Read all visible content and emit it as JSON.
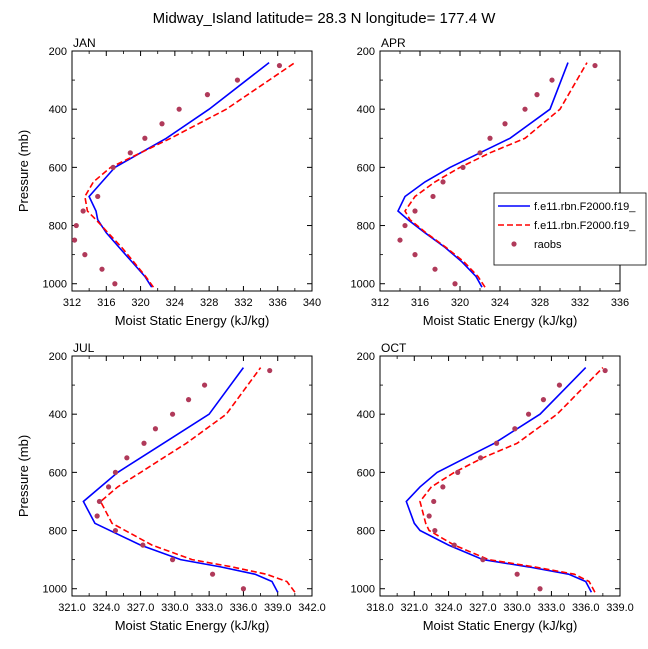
{
  "figure": {
    "title": "Midway_Island  latitude= 28.3 N longitude= 177.4 W"
  },
  "legend": {
    "placement": "right of APR panel",
    "entries": [
      {
        "label": "f.e11.rbn.F2000.f19_",
        "style": "solid",
        "color": "#0000ff"
      },
      {
        "label": "f.e11.rbn.F2000.f19_",
        "style": "dashed",
        "color": "#ff0000"
      },
      {
        "label": "raobs",
        "style": "marker",
        "color": "#b03a5a"
      }
    ]
  },
  "chart_data": [
    {
      "type": "line",
      "panel_label": "JAN",
      "xlabel": "Moist Static Energy (kJ/kg)",
      "ylabel": "Pressure (mb)",
      "xlim": [
        312,
        340
      ],
      "ylim": [
        1025,
        200
      ],
      "xticks": [
        312,
        316,
        320,
        324,
        328,
        332,
        336,
        340
      ],
      "xtick_labels": [
        "312",
        "316",
        "320",
        "324",
        "328",
        "332",
        "336",
        "340"
      ],
      "yticks": [
        200,
        400,
        600,
        800,
        1000
      ],
      "ytick_labels": [
        "200",
        "400",
        "600",
        "800",
        "1000"
      ],
      "series": [
        {
          "name": "f.e11.rbn.F2000.f19_",
          "style": "solid",
          "color": "#0000ff",
          "x": [
            321.3,
            320.5,
            319.0,
            317.5,
            316.0,
            315.0,
            314.8,
            314.0,
            315.5,
            317.0,
            320.0,
            323.0,
            328.0,
            335.0
          ],
          "y": [
            1012,
            975,
            925,
            875,
            825,
            780,
            750,
            700,
            650,
            600,
            550,
            500,
            400,
            240
          ]
        },
        {
          "name": "f.e11.rbn.F2000.f19_",
          "style": "dashed",
          "color": "#ff0000",
          "x": [
            321.5,
            320.6,
            319.2,
            317.8,
            316.2,
            314.8,
            313.8,
            313.5,
            314.5,
            316.5,
            320.0,
            323.5,
            330.0,
            338.0
          ],
          "y": [
            1012,
            975,
            925,
            875,
            825,
            780,
            750,
            700,
            650,
            600,
            550,
            500,
            400,
            240
          ]
        },
        {
          "name": "raobs",
          "style": "marker",
          "color": "#b03a5a",
          "x": [
            317.0,
            315.5,
            313.5,
            312.3,
            312.5,
            313.3,
            315.0,
            316.8,
            318.8,
            320.5,
            322.5,
            324.5,
            327.8,
            331.3,
            336.2
          ],
          "y": [
            1000,
            950,
            900,
            850,
            800,
            750,
            700,
            600,
            550,
            500,
            450,
            400,
            350,
            300,
            250
          ]
        }
      ]
    },
    {
      "type": "line",
      "panel_label": "APR",
      "xlabel": "Moist Static Energy (kJ/kg)",
      "ylabel": "",
      "xlim": [
        312,
        336
      ],
      "ylim": [
        1025,
        200
      ],
      "xticks": [
        312,
        316,
        320,
        324,
        328,
        332,
        336
      ],
      "xtick_labels": [
        "312",
        "316",
        "320",
        "324",
        "328",
        "332",
        "336"
      ],
      "yticks": [
        200,
        400,
        600,
        800,
        1000
      ],
      "ytick_labels": [
        "200",
        "400",
        "600",
        "800",
        "1000"
      ],
      "series": [
        {
          "name": "f.e11.rbn.F2000.f19_",
          "style": "solid",
          "color": "#0000ff",
          "x": [
            322.2,
            321.6,
            320.2,
            318.5,
            316.5,
            314.8,
            313.8,
            314.5,
            316.5,
            319.0,
            322.0,
            325.0,
            329.0,
            330.8
          ],
          "y": [
            1012,
            975,
            925,
            875,
            825,
            780,
            750,
            700,
            650,
            600,
            550,
            500,
            400,
            240
          ]
        },
        {
          "name": "f.e11.rbn.F2000.f19_",
          "style": "dashed",
          "color": "#ff0000",
          "x": [
            322.5,
            321.8,
            320.4,
            318.6,
            316.6,
            315.0,
            314.5,
            315.5,
            317.5,
            320.0,
            323.0,
            326.5,
            330.0,
            332.7
          ],
          "y": [
            1012,
            975,
            925,
            875,
            825,
            780,
            750,
            700,
            650,
            600,
            550,
            500,
            400,
            240
          ]
        },
        {
          "name": "raobs",
          "style": "marker",
          "color": "#b03a5a",
          "x": [
            319.5,
            317.5,
            315.5,
            314.0,
            314.5,
            315.5,
            317.3,
            318.3,
            320.3,
            322.0,
            323.0,
            324.5,
            326.5,
            327.7,
            329.2,
            333.5
          ],
          "y": [
            1000,
            950,
            900,
            850,
            800,
            750,
            700,
            650,
            600,
            550,
            500,
            450,
            400,
            350,
            300,
            250
          ]
        }
      ]
    },
    {
      "type": "line",
      "panel_label": "JUL",
      "xlabel": "Moist Static Energy (kJ/kg)",
      "ylabel": "Pressure (mb)",
      "xlim": [
        321,
        342
      ],
      "ylim": [
        1025,
        200
      ],
      "xticks": [
        321,
        324,
        327,
        330,
        333,
        336,
        339,
        342
      ],
      "xtick_labels": [
        "321.0",
        "324.0",
        "327.0",
        "330.0",
        "333.0",
        "336.0",
        "339.0",
        "342.0"
      ],
      "yticks": [
        200,
        400,
        600,
        800,
        1000
      ],
      "ytick_labels": [
        "200",
        "400",
        "600",
        "800",
        "1000"
      ],
      "series": [
        {
          "name": "f.e11.rbn.F2000.f19_",
          "style": "solid",
          "color": "#0000ff",
          "x": [
            339.0,
            338.5,
            337.0,
            334.0,
            330.5,
            327.0,
            323.0,
            322.0,
            323.5,
            325.0,
            327.0,
            329.0,
            333.0,
            336.0
          ],
          "y": [
            1012,
            975,
            950,
            925,
            900,
            850,
            775,
            700,
            650,
            600,
            550,
            500,
            400,
            240
          ]
        },
        {
          "name": "f.e11.rbn.F2000.f19_",
          "style": "dashed",
          "color": "#ff0000",
          "x": [
            340.5,
            339.8,
            338.0,
            335.0,
            331.5,
            328.0,
            324.5,
            323.5,
            325.0,
            327.0,
            329.0,
            331.0,
            334.5,
            337.5
          ],
          "y": [
            1012,
            975,
            950,
            925,
            900,
            850,
            775,
            700,
            650,
            600,
            550,
            500,
            400,
            240
          ]
        },
        {
          "name": "raobs",
          "style": "marker",
          "color": "#b03a5a",
          "x": [
            336.0,
            333.3,
            329.8,
            327.2,
            324.8,
            323.2,
            323.4,
            324.2,
            324.8,
            325.8,
            327.3,
            328.3,
            329.8,
            331.2,
            332.6,
            338.3
          ],
          "y": [
            1000,
            950,
            900,
            850,
            800,
            750,
            700,
            650,
            600,
            550,
            500,
            450,
            400,
            350,
            300,
            250
          ]
        }
      ]
    },
    {
      "type": "line",
      "panel_label": "OCT",
      "xlabel": "Moist Static Energy (kJ/kg)",
      "ylabel": "",
      "xlim": [
        318,
        339
      ],
      "ylim": [
        1025,
        200
      ],
      "xticks": [
        318,
        321,
        324,
        327,
        330,
        333,
        336,
        339
      ],
      "xtick_labels": [
        "318.0",
        "321.0",
        "324.0",
        "327.0",
        "330.0",
        "333.0",
        "336.0",
        "339.0"
      ],
      "yticks": [
        200,
        400,
        600,
        800,
        1000
      ],
      "ytick_labels": [
        "200",
        "400",
        "600",
        "800",
        "1000"
      ],
      "series": [
        {
          "name": "f.e11.rbn.F2000.f19_",
          "style": "solid",
          "color": "#0000ff",
          "x": [
            336.5,
            336.0,
            334.5,
            331.0,
            327.0,
            324.0,
            321.5,
            321.0,
            320.3,
            321.5,
            323.0,
            325.5,
            328.0,
            332.0,
            336.0
          ],
          "y": [
            1012,
            975,
            950,
            925,
            900,
            850,
            800,
            775,
            700,
            650,
            600,
            550,
            500,
            400,
            240
          ]
        },
        {
          "name": "f.e11.rbn.F2000.f19_",
          "style": "dashed",
          "color": "#ff0000",
          "x": [
            336.8,
            336.3,
            335.0,
            331.5,
            327.5,
            324.5,
            322.3,
            322.0,
            321.5,
            322.5,
            324.5,
            327.0,
            330.0,
            333.5,
            337.5
          ],
          "y": [
            1012,
            975,
            950,
            925,
            900,
            850,
            800,
            775,
            700,
            650,
            600,
            550,
            500,
            400,
            240
          ]
        },
        {
          "name": "raobs",
          "style": "marker",
          "color": "#b03a5a",
          "x": [
            332.0,
            330.0,
            327.0,
            324.5,
            322.8,
            322.3,
            322.7,
            323.5,
            324.8,
            326.8,
            328.2,
            329.8,
            331.0,
            332.3,
            333.7,
            337.7
          ],
          "y": [
            1000,
            950,
            900,
            850,
            800,
            750,
            700,
            650,
            600,
            550,
            500,
            450,
            400,
            350,
            300,
            250
          ]
        }
      ]
    }
  ]
}
